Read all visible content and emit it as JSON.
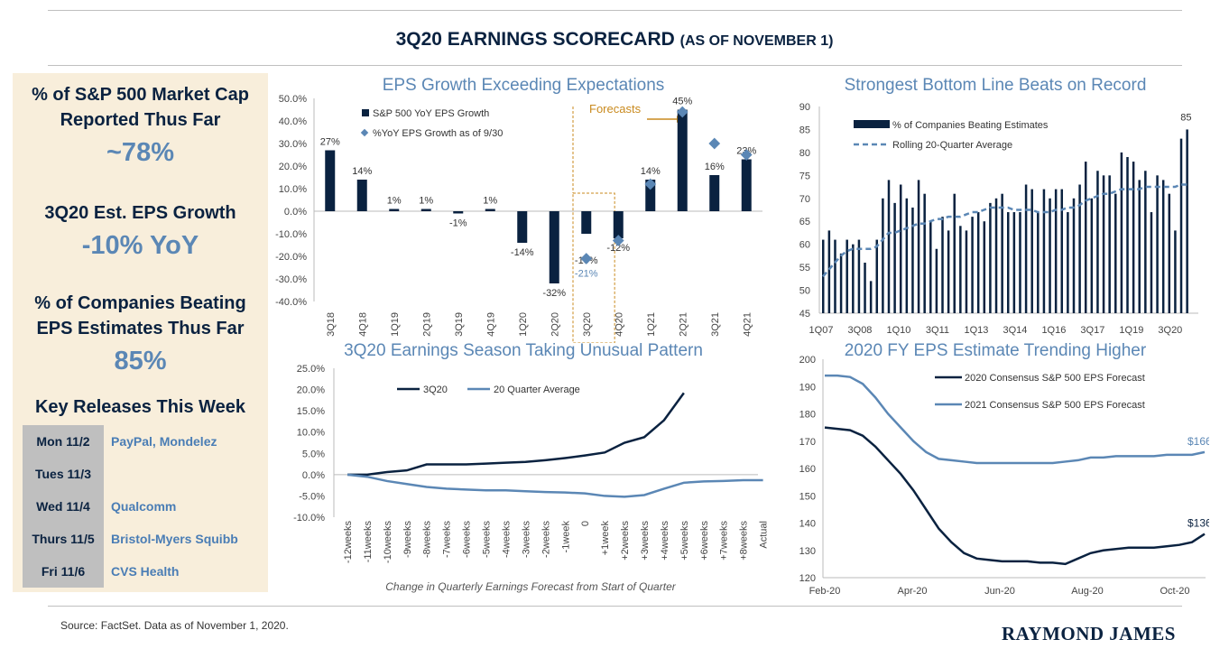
{
  "page": {
    "title": "3Q20 EARNINGS SCORECARD",
    "title_sub": "(AS OF NOVEMBER 1)",
    "source": "Source: FactSet. Data as of November 1, 2020.",
    "logo": "RAYMOND JAMES"
  },
  "sidebar": {
    "market_cap_head1": "% of S&P 500 Market Cap",
    "market_cap_head2": "Reported Thus Far",
    "market_cap_value": "~78%",
    "eps_growth_head": "3Q20 Est. EPS Growth",
    "eps_growth_value": "-10% YoY",
    "beating_head1": "% of Companies Beating",
    "beating_head2": "EPS Estimates Thus Far",
    "beating_value": "85%",
    "releases_head": "Key Releases This Week",
    "releases": [
      {
        "day": "Mon 11/2",
        "company": "PayPal, Mondelez"
      },
      {
        "day": "Tues 11/3",
        "company": ""
      },
      {
        "day": "Wed 11/4",
        "company": "Qualcomm"
      },
      {
        "day": "Thurs 11/5",
        "company": "Bristol-Myers Squibb"
      },
      {
        "day": "Fri 11/6",
        "company": "CVS Health"
      }
    ]
  },
  "chart_data": [
    {
      "type": "bar",
      "title": "EPS Growth Exceeding Expectations",
      "categories": [
        "3Q18",
        "4Q18",
        "1Q19",
        "2Q19",
        "3Q19",
        "4Q19",
        "1Q20",
        "2Q20",
        "3Q20",
        "4Q20",
        "1Q21",
        "2Q21",
        "3Q21",
        "4Q21"
      ],
      "series": [
        {
          "name": "S&P 500 YoY EPS Growth",
          "values": [
            27,
            14,
            1,
            1,
            -1,
            1,
            -14,
            -32,
            -10,
            -12,
            14,
            45,
            16,
            23
          ]
        },
        {
          "name": "%YoY EPS Growth as of 9/30",
          "values": [
            null,
            null,
            null,
            null,
            null,
            null,
            null,
            null,
            -21,
            -13,
            12,
            44,
            30,
            25
          ]
        }
      ],
      "bar_labels": [
        "27%",
        "14%",
        "1%",
        "1%",
        "-1%",
        "1%",
        "-14%",
        "-32%",
        "-10%",
        "-12%",
        "14%",
        "45%",
        "16%",
        "23%"
      ],
      "marker_label_3Q20": "-21%",
      "annotation": "Forecasts",
      "yticks": [
        "50.0%",
        "40.0%",
        "30.0%",
        "20.0%",
        "10.0%",
        "0.0%",
        "-10.0%",
        "-20.0%",
        "-30.0%",
        "-40.0%"
      ],
      "ylim": [
        -40,
        50
      ]
    },
    {
      "type": "line",
      "title": "3Q20 Earnings Season Taking Unusual Pattern",
      "xlabel": "Change in Quarterly Earnings Forecast from Start of Quarter",
      "categories": [
        "-12weeks",
        "-11weeks",
        "-10weeks",
        "-9weeks",
        "-8weeks",
        "-7weeks",
        "-6weeks",
        "-5weeks",
        "-4weeks",
        "-3weeks",
        "-2weeks",
        "-1week",
        "0",
        "+1week",
        "+2weeks",
        "+3weeks",
        "+4weeks",
        "+5weeks",
        "+6weeks",
        "+7weeks",
        "+8weeks",
        "Actual"
      ],
      "series": [
        {
          "name": "3Q20",
          "values": [
            0,
            0,
            0.6,
            1.0,
            2.4,
            2.4,
            2.4,
            2.6,
            2.8,
            3.0,
            3.4,
            3.9,
            4.5,
            5.2,
            7.5,
            8.8,
            12.8,
            19.2,
            null,
            null,
            null,
            null
          ]
        },
        {
          "name": "20 Quarter Average",
          "values": [
            0,
            -0.5,
            -1.5,
            -2.2,
            -2.9,
            -3.3,
            -3.5,
            -3.7,
            -3.7,
            -3.9,
            -4.1,
            -4.2,
            -4.4,
            -5.0,
            -5.2,
            -4.8,
            -3.3,
            -1.9,
            -1.6,
            -1.5,
            -1.3,
            -1.3
          ]
        }
      ],
      "yticks": [
        "25.0%",
        "20.0%",
        "15.0%",
        "10.0%",
        "5.0%",
        "0.0%",
        "-5.0%",
        "-10.0%"
      ],
      "ylim": [
        -10,
        25
      ]
    },
    {
      "type": "bar",
      "title": "Strongest Bottom Line Beats on Record",
      "legend": [
        "% of Companies Beating Estimates",
        "Rolling 20-Quarter Average"
      ],
      "xticks": [
        "1Q07",
        "3Q08",
        "1Q10",
        "3Q11",
        "1Q13",
        "3Q14",
        "1Q16",
        "3Q17",
        "1Q19",
        "3Q20"
      ],
      "series": [
        {
          "name": "% of Companies Beating Estimates",
          "values": [
            61,
            63,
            61,
            58,
            61,
            60,
            61,
            56,
            52,
            61,
            70,
            74,
            69,
            73,
            70,
            68,
            74,
            71,
            65,
            59,
            66,
            63,
            71,
            64,
            63,
            66,
            67,
            65,
            69,
            70,
            71,
            67,
            67,
            67,
            73,
            72,
            67,
            72,
            70,
            72,
            72,
            67,
            70,
            73,
            78,
            70,
            76,
            75,
            75,
            71,
            80,
            79,
            78,
            74,
            76,
            67,
            75,
            74,
            71,
            63,
            83,
            85
          ]
        },
        {
          "name": "Rolling 20-Quarter Average",
          "values": [
            53,
            54.5,
            56,
            57.5,
            58.5,
            59,
            59,
            59,
            59,
            59.5,
            61,
            62.5,
            62.5,
            63,
            63.5,
            64,
            64.5,
            64.5,
            65,
            65.5,
            65.5,
            66,
            66,
            66,
            66.5,
            67,
            67,
            67.5,
            68,
            68,
            68,
            68,
            67.5,
            67.5,
            67.5,
            67.5,
            67,
            67,
            67,
            67.5,
            67.5,
            68,
            68,
            68.5,
            69.5,
            70,
            70.5,
            71,
            71,
            71.5,
            72,
            72,
            72,
            72,
            72.5,
            72.5,
            72.5,
            72.5,
            72.5,
            72.5,
            73,
            73
          ]
        }
      ],
      "end_label": "85",
      "yticks": [
        "90",
        "85",
        "80",
        "75",
        "70",
        "65",
        "60",
        "55",
        "50",
        "45"
      ],
      "ylim": [
        45,
        90
      ]
    },
    {
      "type": "line",
      "title": "2020 FY EPS Estimate Trending Higher",
      "xticks": [
        "Feb-20",
        "Apr-20",
        "Jun-20",
        "Aug-20",
        "Oct-20"
      ],
      "series": [
        {
          "name": "2020 Consensus S&P 500 EPS Forecast",
          "values": [
            175,
            174.5,
            174,
            172,
            168,
            163,
            158,
            152,
            145,
            138,
            133,
            129,
            127,
            126.5,
            126,
            126,
            126,
            125.5,
            125.5,
            125,
            127,
            129,
            130,
            130.5,
            131,
            131,
            131,
            131.5,
            132,
            133,
            136
          ]
        },
        {
          "name": "2021 Consensus S&P 500 EPS Forecast",
          "values": [
            194,
            194,
            193.5,
            191,
            186,
            180,
            175,
            170,
            166,
            163.5,
            163,
            162.5,
            162,
            162,
            162,
            162,
            162,
            162,
            162,
            162.5,
            163,
            164,
            164,
            164.5,
            164.5,
            164.5,
            164.5,
            165,
            165,
            165,
            166
          ]
        }
      ],
      "end_labels": [
        "$136",
        "$166"
      ],
      "yticks": [
        "200",
        "190",
        "180",
        "170",
        "160",
        "150",
        "140",
        "130",
        "120"
      ],
      "ylim": [
        120,
        200
      ]
    }
  ],
  "colors": {
    "navy": "#0a2240",
    "blue": "#5b87b5",
    "sidebar_bg": "#f8eedb",
    "forecast": "#c98a1e"
  }
}
